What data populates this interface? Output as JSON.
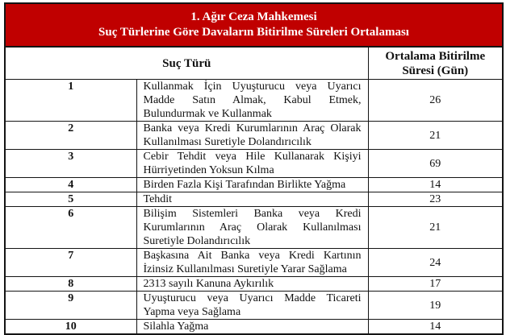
{
  "title": {
    "line1": "1. Ağır Ceza Mahkemesi",
    "line2": "Suç Türlerine Göre Davaların Bitirilme Süreleri Ortalaması"
  },
  "colors": {
    "title_bg": "#C00000",
    "title_text": "#FFFFFF",
    "border": "#141414"
  },
  "table": {
    "headers": {
      "crime_type": "Suç Türü",
      "avg_duration": "Ortalama Bitirilme Süresi (Gün)"
    },
    "rows": [
      {
        "no": "1",
        "crime": "Kullanmak İçin Uyuşturucu veya Uyarıcı Madde Satın Almak, Kabul Etmek, Bulundurmak ve Kullanmak",
        "days": "26"
      },
      {
        "no": "2",
        "crime": "Banka veya Kredi Kurumlarının Araç Olarak Kullanılması Suretiyle Dolandırıcılık",
        "days": "21"
      },
      {
        "no": "3",
        "crime": "Cebir Tehdit veya Hile Kullanarak Kişiyi Hürriyetinden Yoksun Kılma",
        "days": "69"
      },
      {
        "no": "4",
        "crime": "Birden Fazla Kişi Tarafından Birlikte Yağma",
        "days": "14"
      },
      {
        "no": "5",
        "crime": "Tehdit",
        "days": "23"
      },
      {
        "no": "6",
        "crime": "Bilişim Sistemleri Banka veya Kredi Kurumlarının Araç Olarak Kullanılması Suretiyle Dolandırıcılık",
        "days": "21"
      },
      {
        "no": "7",
        "crime": "Başkasına Ait Banka veya Kredi Kartının İzinsiz Kullanılması Suretiyle Yarar Sağlama",
        "days": "24"
      },
      {
        "no": "8",
        "crime": "2313 sayılı Kanuna Aykırılık",
        "days": "17"
      },
      {
        "no": "9",
        "crime": "Uyuşturucu veya Uyarıcı Madde Ticareti Yapma veya Sağlama",
        "days": "19"
      },
      {
        "no": "10",
        "crime": "Silahla Yağma",
        "days": "14"
      }
    ]
  }
}
